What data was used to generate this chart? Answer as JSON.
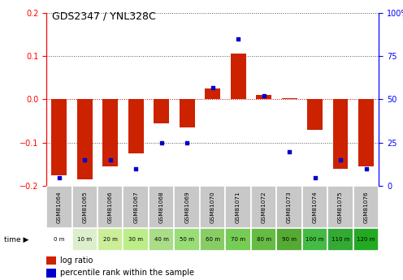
{
  "title": "GDS2347 / YNL328C",
  "samples": [
    "GSM81064",
    "GSM81065",
    "GSM81066",
    "GSM81067",
    "GSM81068",
    "GSM81069",
    "GSM81070",
    "GSM81071",
    "GSM81072",
    "GSM81073",
    "GSM81074",
    "GSM81075",
    "GSM81076"
  ],
  "time_labels": [
    "0 m",
    "10 m",
    "20 m",
    "30 m",
    "40 m",
    "50 m",
    "60 m",
    "70 m",
    "80 m",
    "90 m",
    "100 m",
    "110 m",
    "120 m"
  ],
  "log_ratio": [
    -0.175,
    -0.185,
    -0.155,
    -0.125,
    -0.055,
    -0.065,
    0.025,
    0.105,
    0.01,
    0.002,
    -0.07,
    -0.16,
    -0.155
  ],
  "percentile": [
    5,
    15,
    15,
    10,
    25,
    25,
    57,
    85,
    52,
    20,
    5,
    15,
    10
  ],
  "ylim_left": [
    -0.2,
    0.2
  ],
  "ylim_right": [
    0,
    100
  ],
  "bar_color": "#cc2200",
  "dot_color": "#0000cc",
  "sample_bg": "#c8c8c8",
  "time_colors": [
    "#ffffff",
    "#ddeecc",
    "#ccee99",
    "#bbee88",
    "#aadd88",
    "#99dd77",
    "#88cc66",
    "#77cc55",
    "#66bb44",
    "#55aa33",
    "#44bb44",
    "#33aa33",
    "#22aa22"
  ],
  "dotted_line_color": "#555555",
  "zero_line_color": "#cc0000",
  "title_fontsize": 9,
  "tick_fontsize": 7,
  "bar_width": 0.6
}
